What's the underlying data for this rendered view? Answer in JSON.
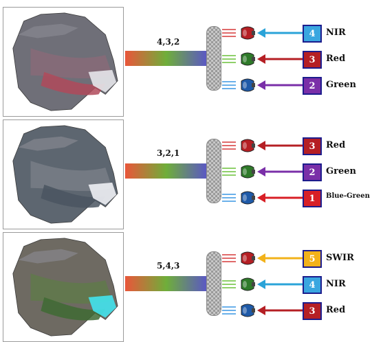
{
  "panels": [
    {
      "combo": "4,3,2",
      "gradient": [
        "#e9563a",
        "#6fae3a",
        "#5a55c8"
      ],
      "channels": [
        {
          "band": "4",
          "name": "NIR",
          "box_color": "#3aa6e0",
          "arrow_color": "#2aa3d8",
          "gun_color": "red-gun-icon"
        },
        {
          "band": "3",
          "name": "Red",
          "box_color": "#b51f24",
          "arrow_color": "#b51f24",
          "gun_color": "green-gun-icon"
        },
        {
          "band": "2",
          "name": "Green",
          "box_color": "#7a2fa8",
          "arrow_color": "#7a2fa8",
          "gun_color": "blue-gun-icon"
        }
      ]
    },
    {
      "combo": "3,2,1",
      "gradient": [
        "#e9563a",
        "#6fae3a",
        "#5a55c8"
      ],
      "channels": [
        {
          "band": "3",
          "name": "Red",
          "box_color": "#b51f24",
          "arrow_color": "#b51f24",
          "gun_color": "red-gun-icon"
        },
        {
          "band": "2",
          "name": "Green",
          "box_color": "#7a2fa8",
          "arrow_color": "#7a2fa8",
          "gun_color": "green-gun-icon"
        },
        {
          "band": "1",
          "name": "Blue-Green",
          "box_color": "#d81f26",
          "arrow_color": "#d81f26",
          "gun_color": "blue-gun-icon"
        }
      ]
    },
    {
      "combo": "5,4,3",
      "gradient": [
        "#e9563a",
        "#6fae3a",
        "#5a55c8"
      ],
      "channels": [
        {
          "band": "5",
          "name": "SWIR",
          "box_color": "#f2b21a",
          "arrow_color": "#f2b21a",
          "gun_color": "red-gun-icon"
        },
        {
          "band": "4",
          "name": "NIR",
          "box_color": "#3aa6e0",
          "arrow_color": "#2aa3d8",
          "gun_color": "green-gun-icon"
        },
        {
          "band": "3",
          "name": "Red",
          "box_color": "#b51f24",
          "arrow_color": "#b51f24",
          "gun_color": "blue-gun-icon"
        }
      ]
    }
  ]
}
